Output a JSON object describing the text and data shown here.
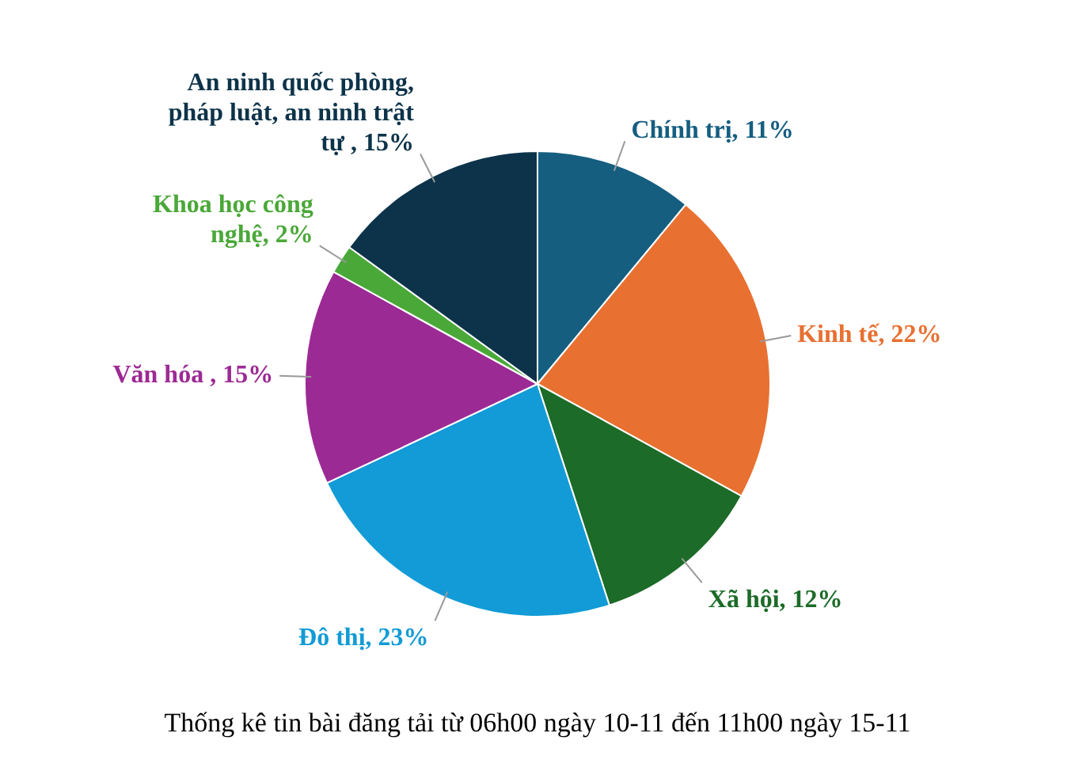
{
  "chart_data": {
    "type": "pie",
    "categories": [
      "Chính trị",
      "Kinh tế",
      "Xã hội",
      "Đô thị",
      "Văn hóa ",
      "Khoa học công nghệ",
      "An ninh quốc phòng, pháp luật, an ninh trật tự "
    ],
    "value_labels": [
      "11%",
      "22%",
      "12%",
      "23%",
      "15%",
      "2%",
      "15%"
    ],
    "values": [
      11,
      22,
      12,
      23,
      15,
      2,
      15
    ],
    "colors": [
      "#155e80",
      "#e87030",
      "#1c6b28",
      "#129bd6",
      "#9c2a94",
      "#4aa838",
      "#0c3349"
    ],
    "legend": false,
    "annotations": [
      "Thống kê tin bài đăng tải từ 06h00 ngày 10-11 đến 11h00 ngày 15-11"
    ]
  }
}
